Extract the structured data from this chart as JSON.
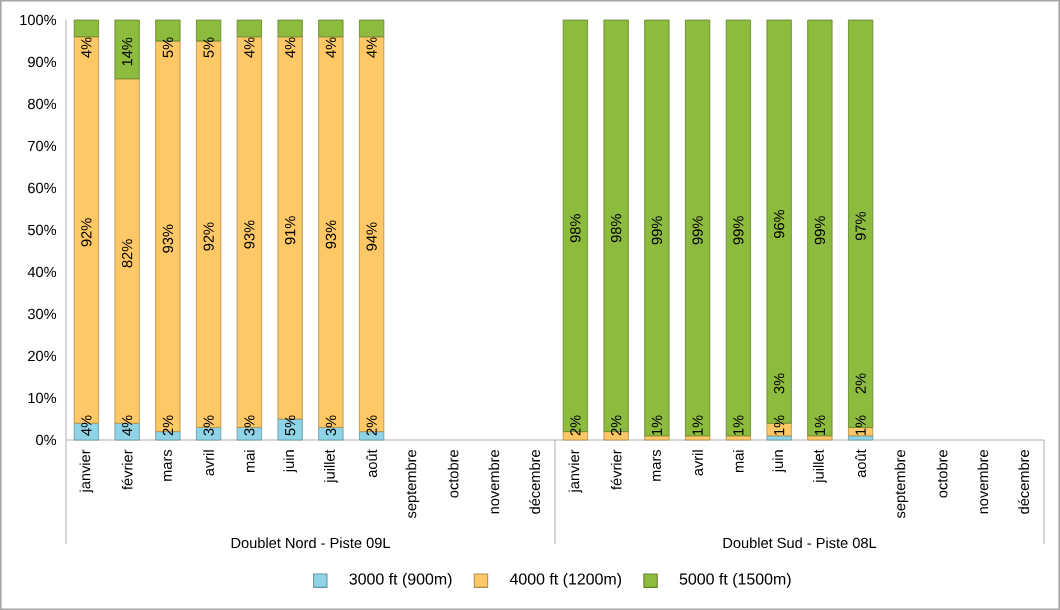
{
  "chart_data": {
    "type": "bar",
    "stacked": true,
    "data_labels": true,
    "legend": "bottom",
    "categories": [
      "janvier",
      "février",
      "mars",
      "avril",
      "mai",
      "juin",
      "juillet",
      "août",
      "septembre",
      "octobre",
      "novembre",
      "décembre",
      "janvier",
      "février",
      "mars",
      "avril",
      "mai",
      "juin",
      "juillet",
      "août",
      "septembre",
      "octobre",
      "novembre",
      "décembre"
    ],
    "annotations": [
      "Doublet Nord - Piste 09L",
      "Doublet Sud - Piste 08L"
    ],
    "ylim": [
      0,
      100
    ],
    "yticks": [
      {
        "value": 0,
        "label": "0%"
      },
      {
        "value": 10,
        "label": "10%"
      },
      {
        "value": 20,
        "label": "20%"
      },
      {
        "value": 30,
        "label": "30%"
      },
      {
        "value": 40,
        "label": "40%"
      },
      {
        "value": 50,
        "label": "50%"
      },
      {
        "value": 60,
        "label": "60%"
      },
      {
        "value": 70,
        "label": "70%"
      },
      {
        "value": 80,
        "label": "80%"
      },
      {
        "value": 90,
        "label": "90%"
      },
      {
        "value": 100,
        "label": "100%"
      }
    ],
    "series": [
      {
        "name": "3000 ft (900m)",
        "color": "#8fd3e6",
        "values": [
          4,
          4,
          2,
          3,
          3,
          5,
          3,
          2,
          null,
          null,
          null,
          null,
          null,
          null,
          null,
          null,
          null,
          1,
          null,
          1,
          null,
          null,
          null,
          null
        ],
        "value_labels": [
          "4%",
          "4%",
          "2%",
          "3%",
          "3%",
          "5%",
          "3%",
          "2%",
          null,
          null,
          null,
          null,
          null,
          null,
          null,
          null,
          null,
          "1%",
          null,
          "1%",
          null,
          null,
          null,
          null
        ]
      },
      {
        "name": "4000 ft (1200m)",
        "color": "#fdc865",
        "values": [
          92,
          82,
          93,
          92,
          93,
          91,
          93,
          94,
          null,
          null,
          null,
          null,
          2,
          2,
          1,
          1,
          1,
          3,
          1,
          2,
          null,
          null,
          null,
          null
        ],
        "value_labels": [
          "92%",
          "82%",
          "93%",
          "92%",
          "93%",
          "91%",
          "93%",
          "94%",
          null,
          null,
          null,
          null,
          "2%",
          "2%",
          "1%",
          "1%",
          "1%",
          "3%",
          "1%",
          "2%",
          null,
          null,
          null,
          null
        ]
      },
      {
        "name": "5000 ft (1500m)",
        "color": "#8dbb3e",
        "values": [
          4,
          14,
          5,
          5,
          4,
          4,
          4,
          4,
          null,
          null,
          null,
          null,
          98,
          98,
          99,
          99,
          99,
          96,
          99,
          97,
          null,
          null,
          null,
          null
        ],
        "value_labels": [
          "4%",
          "14%",
          "5%",
          "5%",
          "4%",
          "4%",
          "4%",
          "4%",
          null,
          null,
          null,
          null,
          "98%",
          "98%",
          "99%",
          "99%",
          "99%",
          "96%",
          "99%",
          "97%",
          null,
          null,
          null,
          null
        ]
      }
    ]
  }
}
